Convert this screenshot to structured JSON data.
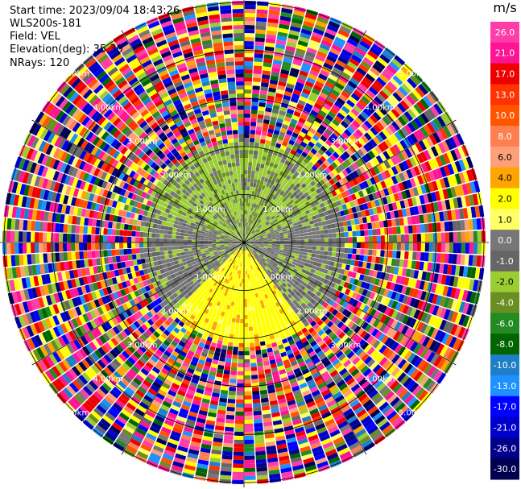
{
  "header": {
    "start_time_label": "Start time:",
    "start_time": "2023/09/04 18:43:26",
    "instrument": "WLS200s-181",
    "field_label": "Field:",
    "field": "VEL",
    "elevation_label": "Elevation(deg):",
    "elevation": "35.30",
    "nrays_label": "NRays:",
    "nrays": "120"
  },
  "chart_data": {
    "type": "heatmap",
    "projection": "polar-ppi",
    "field": "VEL",
    "nrays": 120,
    "range_ring_labels": [
      "1.00km",
      "2.00km",
      "3.00km",
      "4.00km",
      "5.00km"
    ],
    "range_rings_km": [
      1,
      2,
      3,
      4,
      5
    ],
    "azimuth_spokes_deg": [
      0,
      30,
      60,
      90,
      120,
      150,
      180,
      210,
      240,
      270,
      300,
      330
    ],
    "near_field": {
      "range_km": 2.0,
      "north_half": "light-green (approx -2 m/s)",
      "south_sector": "yellow (approx +2 m/s)",
      "horizontal_band": "grey (approx 0 m/s)"
    },
    "far_field": "noise (speckled all values beyond ~2.2 km)"
  },
  "colorbar": {
    "unit": "m/s",
    "ticks": [
      "26.0",
      "21.0",
      "17.0",
      "13.0",
      "10.0",
      "8.0",
      "6.0",
      "4.0",
      "2.0",
      "1.0",
      "0.0",
      "-1.0",
      "-2.0",
      "-4.0",
      "-6.0",
      "-8.0",
      "-10.0",
      "-13.0",
      "-17.0",
      "-21.0",
      "-26.0",
      "-30.0"
    ],
    "colors": [
      "#ff3da8",
      "#ff1493",
      "#ee0000",
      "#ff3300",
      "#ff5500",
      "#ff7f50",
      "#ffa07a",
      "#ffa500",
      "#ffff00",
      "#ffff66",
      "#777777",
      "#666666",
      "#9acd32",
      "#6b8e23",
      "#228b22",
      "#006400",
      "#1e7fc8",
      "#1e90ff",
      "#0000ff",
      "#0000cd",
      "#00008b",
      "#000050"
    ]
  }
}
